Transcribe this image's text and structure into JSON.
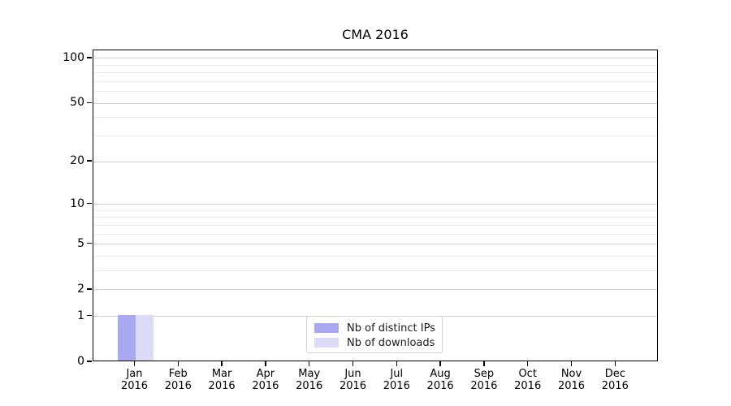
{
  "chart_data": {
    "type": "bar",
    "title": "CMA 2016",
    "categories": [
      {
        "month": "Jan",
        "year": "2016"
      },
      {
        "month": "Feb",
        "year": "2016"
      },
      {
        "month": "Mar",
        "year": "2016"
      },
      {
        "month": "Apr",
        "year": "2016"
      },
      {
        "month": "May",
        "year": "2016"
      },
      {
        "month": "Jun",
        "year": "2016"
      },
      {
        "month": "Jul",
        "year": "2016"
      },
      {
        "month": "Aug",
        "year": "2016"
      },
      {
        "month": "Sep",
        "year": "2016"
      },
      {
        "month": "Oct",
        "year": "2016"
      },
      {
        "month": "Nov",
        "year": "2016"
      },
      {
        "month": "Dec",
        "year": "2016"
      }
    ],
    "series": [
      {
        "name": "Nb of distinct IPs",
        "color": "#a9a9f1",
        "values": [
          1,
          0,
          0,
          0,
          0,
          0,
          0,
          0,
          0,
          0,
          0,
          0
        ]
      },
      {
        "name": "Nb of downloads",
        "color": "#dcdcf9",
        "values": [
          1,
          0,
          0,
          0,
          0,
          0,
          0,
          0,
          0,
          0,
          0,
          0
        ]
      }
    ],
    "y_axis": {
      "scale": "log10(value+1)",
      "tick_values": [
        0,
        1,
        2,
        5,
        10,
        20,
        50,
        100
      ],
      "minor_gridline_values": [
        3,
        4,
        6,
        7,
        8,
        9,
        30,
        40,
        60,
        70,
        80,
        90
      ],
      "ylim": [
        0,
        113
      ]
    },
    "x_axis": {
      "xlabel": "",
      "tick_labels_two_line": true
    },
    "ylabel": "",
    "xlabel": "",
    "grid": true,
    "legend": {
      "position": "lower-center",
      "entries": [
        "Nb of distinct IPs",
        "Nb of downloads"
      ]
    },
    "colors": {
      "major_gridline": "#cfcfcf",
      "minor_gridline": "#eaeaea",
      "axis": "#000000",
      "legend_border": "#d2d2d2",
      "background": "#ffffff"
    }
  }
}
